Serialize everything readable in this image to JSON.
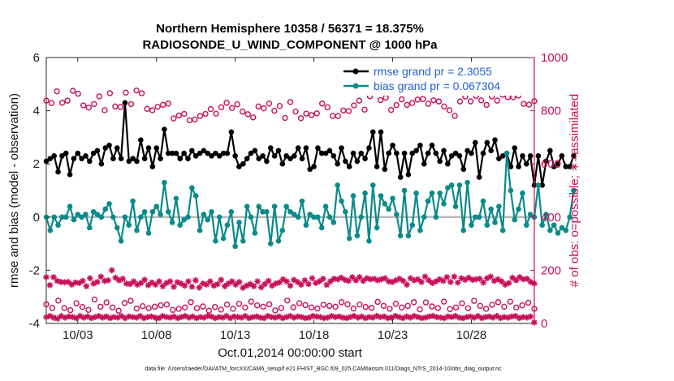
{
  "chart_data": {
    "type": "line",
    "title": "Northern Hemisphere 10358 / 56371 = 18.375%",
    "subtitle": "RADIOSONDE_U_WIND_COMPONENT @ 1000 hPa",
    "xlabel": "Oct.01,2014 00:00:00 start",
    "ylabel_left": "rmse and bias (model - observation)",
    "ylabel_right": "# of obs: o=possible; ∗=assimilated",
    "footnote": "data file: /Users/raeder/DAI/ATM_forcXX/CAM6_setup/f.e21.FHIST_BGC.f09_025.CAM6assim.011/Diags_NTrS_2014-10/obs_diag_output.nc",
    "x_range": [
      1,
      32
    ],
    "y_range_left": [
      -4,
      6
    ],
    "y_range_right": [
      0,
      1000
    ],
    "y_ticks_left": [
      "-4",
      "-2",
      "0",
      "2",
      "4",
      "6"
    ],
    "y_ticks_right": [
      "0",
      "200",
      "400",
      "600",
      "800",
      "1000"
    ],
    "x_ticks": [
      {
        "day": 3,
        "label": "10/03"
      },
      {
        "day": 8,
        "label": "10/08"
      },
      {
        "day": 13,
        "label": "10/13"
      },
      {
        "day": 18,
        "label": "10/18"
      },
      {
        "day": 23,
        "label": "10/23"
      },
      {
        "day": 28,
        "label": "10/28"
      }
    ],
    "zero_line": 0,
    "x_start": 1.0,
    "x_step": 0.25,
    "series": [
      {
        "name": "rmse grand pr = 2.3055",
        "axis": "left",
        "color": "#000000",
        "marker": "filled-circle",
        "values": [
          2.1,
          2.2,
          2.3,
          1.7,
          2.3,
          2.4,
          1.6,
          2.2,
          2.4,
          2.2,
          2.3,
          2.1,
          2.4,
          2.5,
          2.0,
          2.6,
          2.7,
          2.2,
          2.6,
          2.2,
          4.3,
          2.1,
          2.2,
          2.1,
          2.9,
          2.2,
          2.6,
          1.9,
          2.6,
          2.2,
          3.3,
          2.4,
          2.4,
          2.4,
          2.2,
          2.4,
          2.2,
          2.5,
          2.3,
          2.4,
          2.5,
          2.4,
          2.3,
          2.4,
          2.3,
          2.4,
          2.4,
          3.2,
          2.3,
          1.9,
          2.0,
          2.2,
          2.4,
          2.5,
          2.2,
          2.3,
          2.1,
          2.6,
          2.3,
          2.5,
          2.0,
          2.3,
          2.2,
          2.3,
          2.6,
          2.2,
          2.6,
          1.8,
          1.9,
          2.6,
          2.4,
          2.4,
          2.5,
          2.3,
          2.0,
          2.6,
          2.1,
          1.9,
          2.4,
          2.1,
          2.4,
          2.2,
          2.6,
          3.2,
          1.9,
          3.2,
          1.8,
          2.4,
          2.7,
          2.4,
          1.5,
          2.4,
          1.6,
          2.4,
          2.5,
          2.7,
          2.0,
          2.4,
          2.7,
          2.4,
          2.1,
          2.5,
          2.0,
          2.3,
          2.4,
          2.3,
          1.8,
          2.5,
          2.4,
          2.8,
          1.5,
          2.4,
          2.8,
          2.5,
          2.9,
          2.2,
          2.3,
          2.4,
          1.9,
          2.6,
          1.9,
          2.3,
          2.0,
          2.3,
          1.2,
          2.3,
          1.2,
          2.1,
          2.5,
          1.9,
          2.0,
          2.3,
          1.9,
          1.9,
          2.3
        ]
      },
      {
        "name": "bias grand pr = 0.067304",
        "axis": "left",
        "color": "#0b8a8a",
        "marker": "filled-circle",
        "values": [
          0.0,
          -0.5,
          0.0,
          -0.3,
          0.0,
          0.0,
          0.4,
          -0.1,
          0.1,
          0.0,
          0.1,
          -0.4,
          0.2,
          0.1,
          0.0,
          0.3,
          0.5,
          0.0,
          -0.4,
          -0.9,
          0.0,
          -0.3,
          0.6,
          -0.5,
          0.0,
          0.2,
          -0.6,
          0.2,
          0.4,
          0.1,
          1.3,
          0.2,
          -0.2,
          0.7,
          -0.3,
          -0.1,
          0.0,
          1.1,
          0.8,
          -0.5,
          0.1,
          -0.1,
          0.2,
          -0.9,
          0.0,
          -0.8,
          -0.3,
          0.2,
          -1.1,
          -0.2,
          -0.9,
          0.4,
          0.0,
          -0.6,
          0.4,
          0.2,
          0.2,
          -1.0,
          0.4,
          -0.9,
          -0.5,
          0.4,
          0.2,
          0.1,
          0.0,
          0.6,
          -0.3,
          0.1,
          0.0,
          0.0,
          -0.4,
          0.4,
          0.0,
          -0.2,
          1.2,
          0.6,
          0.2,
          -0.8,
          0.8,
          -0.7,
          0.0,
          0.9,
          -0.9,
          1.2,
          -0.4,
          0.8,
          0.5,
          0.3,
          0.7,
          0.1,
          -0.7,
          1.0,
          -0.7,
          -0.3,
          0.9,
          -0.5,
          0.0,
          0.6,
          0.9,
          0.0,
          0.9,
          0.5,
          1.1,
          1.2,
          0.4,
          1.2,
          -0.5,
          1.3,
          -0.3,
          0.0,
          0.0,
          0.6,
          -0.3,
          0.3,
          -0.2,
          0.4,
          -0.5,
          2.4,
          1.0,
          -0.1,
          0.3,
          0.9,
          -0.3,
          0.1,
          0.0,
          1.2,
          -0.3,
          0.1,
          -0.5,
          -0.3,
          -0.6,
          -0.4,
          -0.5,
          0.0,
          1.0
        ]
      },
      {
        "name": "possible",
        "axis": "right",
        "color": "#c8105a",
        "marker": "open-circle",
        "possible_upper": [
          838,
          829,
          873,
          830,
          838,
          875,
          864,
          820,
          812,
          825,
          854,
          802,
          866,
          816,
          814,
          868,
          825,
          876,
          866,
          807,
          802,
          815,
          822,
          827,
          771,
          782,
          788,
          764,
          767,
          780,
          788,
          806,
          789,
          813,
          830,
          810,
          824,
          797,
          787,
          775,
          816,
          809,
          827,
          800,
          818,
          773,
          833,
          797,
          772,
          789,
          784,
          790,
          827,
          813,
          781,
          780,
          801,
          799,
          820,
          838,
          804,
          854,
          872,
          840,
          849,
          803,
          821,
          843,
          822,
          829,
          842,
          844,
          826,
          839,
          835,
          816,
          802,
          781,
          835,
          853,
          835,
          856,
          839,
          822,
          854,
          838,
          860,
          851,
          851,
          857,
          826,
          823,
          836
        ],
        "possible_lower": [
          72,
          58,
          86,
          58,
          50,
          76,
          62,
          51,
          90,
          63,
          79,
          60,
          48,
          77,
          85,
          56,
          65,
          57,
          63,
          68,
          71,
          51,
          55,
          60,
          80,
          57,
          64,
          48,
          62,
          52,
          71,
          55,
          74,
          60,
          82,
          68,
          63,
          72,
          49,
          58,
          86,
          61,
          76,
          69,
          60,
          56,
          70,
          66,
          63,
          80,
          72,
          56,
          71,
          62,
          59,
          81,
          66,
          55,
          74,
          60,
          66,
          80,
          53,
          79,
          64,
          58,
          82,
          54,
          60,
          76,
          57,
          85,
          66,
          55,
          70,
          80,
          63,
          82,
          60,
          68,
          78,
          55
        ]
      },
      {
        "name": "assimilated",
        "axis": "right",
        "color": "#c8105a",
        "marker": "star",
        "assimilated_upper": [
          174,
          144,
          174,
          160,
          156,
          155,
          156,
          146,
          154,
          152,
          160,
          140,
          170,
          150,
          156,
          176,
          160,
          162,
          200,
          172,
          162,
          168,
          150,
          148,
          158,
          146,
          152,
          164,
          144,
          154,
          146,
          158,
          140,
          152,
          158,
          138,
          155,
          150,
          142,
          158,
          138,
          162,
          135,
          150,
          146,
          158,
          142,
          148,
          164,
          140,
          150,
          158,
          146,
          156,
          134,
          142,
          148,
          140,
          158,
          136,
          148,
          160,
          142,
          150,
          154,
          166,
          158,
          142,
          164,
          156,
          146,
          162,
          148,
          170,
          152,
          158,
          168,
          145,
          158,
          168,
          166,
          172,
          164,
          160,
          174,
          162,
          174,
          160,
          170,
          166,
          168,
          162,
          166,
          170,
          158,
          156,
          162,
          168,
          160,
          146,
          170,
          162,
          166,
          156,
          176,
          162,
          152,
          158,
          166,
          160,
          174,
          156,
          176,
          154,
          170,
          164,
          172,
          164,
          166,
          168,
          154,
          170,
          176,
          160,
          166,
          158,
          146,
          152,
          172,
          162,
          174,
          166,
          168,
          156,
          150
        ],
        "assimilated_lower": [
          24,
          28,
          22,
          18,
          28,
          22,
          26,
          24,
          20,
          28,
          22,
          26,
          20,
          24,
          28,
          22,
          26,
          20,
          24,
          22,
          28,
          20,
          26,
          24,
          22,
          28,
          20,
          24,
          26,
          22,
          20,
          28,
          24,
          22,
          26,
          20,
          24,
          28,
          22,
          26,
          20,
          24,
          22,
          28,
          26,
          20,
          24,
          22,
          28,
          20,
          26,
          24,
          22,
          28,
          20,
          24,
          26,
          22,
          20,
          28,
          24,
          22,
          26,
          20,
          24,
          28,
          22,
          26,
          24,
          20,
          22,
          28,
          26,
          24,
          20,
          22,
          28,
          24,
          26,
          22,
          20,
          24,
          28,
          22,
          26,
          20,
          24,
          22,
          28,
          24,
          26,
          20,
          22,
          28,
          24,
          20,
          26,
          22,
          28,
          24,
          20,
          22,
          26,
          28,
          24,
          22,
          20,
          26,
          24,
          28,
          22,
          20,
          24,
          26,
          22,
          28,
          20,
          24,
          26,
          22,
          28,
          20,
          24,
          22,
          26,
          28,
          20,
          24,
          22,
          26,
          4
        ]
      }
    ]
  }
}
